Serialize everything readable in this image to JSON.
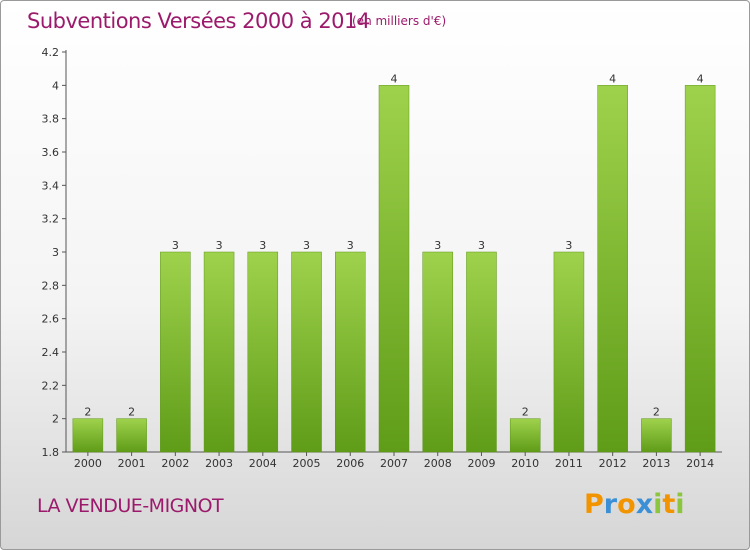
{
  "chart_data": {
    "type": "bar",
    "title": "Subventions Versées 2000 à 2014",
    "subtitle": "(en milliers d'€)",
    "categories": [
      "2000",
      "2001",
      "2002",
      "2003",
      "2004",
      "2005",
      "2006",
      "2007",
      "2008",
      "2009",
      "2010",
      "2011",
      "2012",
      "2013",
      "2014"
    ],
    "values": [
      2,
      2,
      3,
      3,
      3,
      3,
      3,
      4,
      3,
      3,
      2,
      3,
      4,
      2,
      4
    ],
    "data_labels": [
      "2",
      "2",
      "3",
      "3",
      "3",
      "3",
      "3",
      "4",
      "3",
      "3",
      "2",
      "3",
      "4",
      "2",
      "4"
    ],
    "ylim": [
      1.8,
      4.2
    ],
    "yticks": [
      "1.8",
      "2",
      "2.2",
      "2.4",
      "2.6",
      "2.8",
      "3",
      "3.2",
      "3.4",
      "3.6",
      "3.8",
      "4",
      "4.2"
    ],
    "grid": false,
    "bar_color": "#7cb82f"
  },
  "footer": {
    "place_name": "LA VENDUE-MIGNOT",
    "logo": {
      "letters": [
        "P",
        "r",
        "o",
        "x",
        "i",
        "t",
        "i"
      ],
      "colors": [
        "#f29400",
        "#3b8fd6",
        "#f29400",
        "#3b8fd6",
        "#8cc63f",
        "#f29400",
        "#8cc63f"
      ]
    }
  },
  "colors": {
    "title": "#9c1a6b"
  }
}
